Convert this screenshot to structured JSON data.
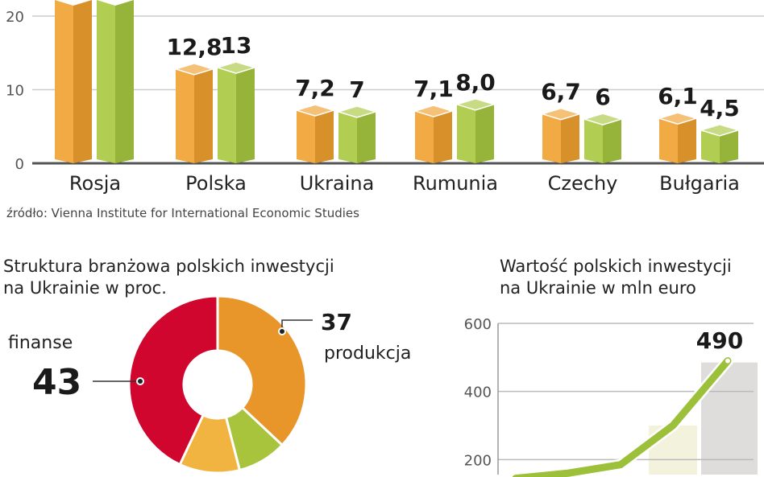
{
  "chart_data": [
    {
      "type": "bar",
      "categories": [
        "Rosja",
        "Polska",
        "Ukraina",
        "Rumunia",
        "Czechy",
        "Bułgaria"
      ],
      "series": [
        {
          "values": [
            null,
            12.8,
            7.2,
            7.1,
            6.7,
            6.1
          ],
          "labels": [
            "",
            "12,8",
            "7,2",
            "7,1",
            "6,7",
            "6,1"
          ],
          "color": "#f0a030"
        },
        {
          "values": [
            null,
            13,
            7,
            8.0,
            6,
            4.5
          ],
          "labels": [
            "",
            "13",
            "7",
            "8,0",
            "6",
            "4,5"
          ],
          "color": "#a8c840"
        }
      ],
      "yticks": [
        "0",
        "10",
        "20"
      ],
      "ytick_values": [
        0,
        10,
        20
      ],
      "ylim": [
        0,
        22
      ],
      "grid": true,
      "source": "źródło: Vienna Institute for International Economic Studies"
    },
    {
      "type": "pie",
      "title_lines": [
        "Struktura branżowa polskich inwestycji",
        "na Ukrainie w proc."
      ],
      "slices": [
        {
          "name": "produkcja",
          "value": 37,
          "label": "37",
          "color": "#e8962a"
        },
        {
          "name": "",
          "value": 9,
          "label": "",
          "color": "#a8c43c"
        },
        {
          "name": "",
          "value": 11,
          "label": "",
          "color": "#f2b440"
        },
        {
          "name": "finanse",
          "value": 43,
          "label": "43",
          "color": "#d0062e"
        }
      ]
    },
    {
      "type": "line",
      "title_lines": [
        "Wartość polskich inwestycji",
        "na Ukrainie w mln euro"
      ],
      "yticks": [
        "200",
        "400",
        "600"
      ],
      "ytick_values": [
        200,
        400,
        600
      ],
      "values": [
        145,
        160,
        185,
        300,
        490
      ],
      "end_label": "490",
      "color": "#9cc03a",
      "grid": true
    }
  ]
}
